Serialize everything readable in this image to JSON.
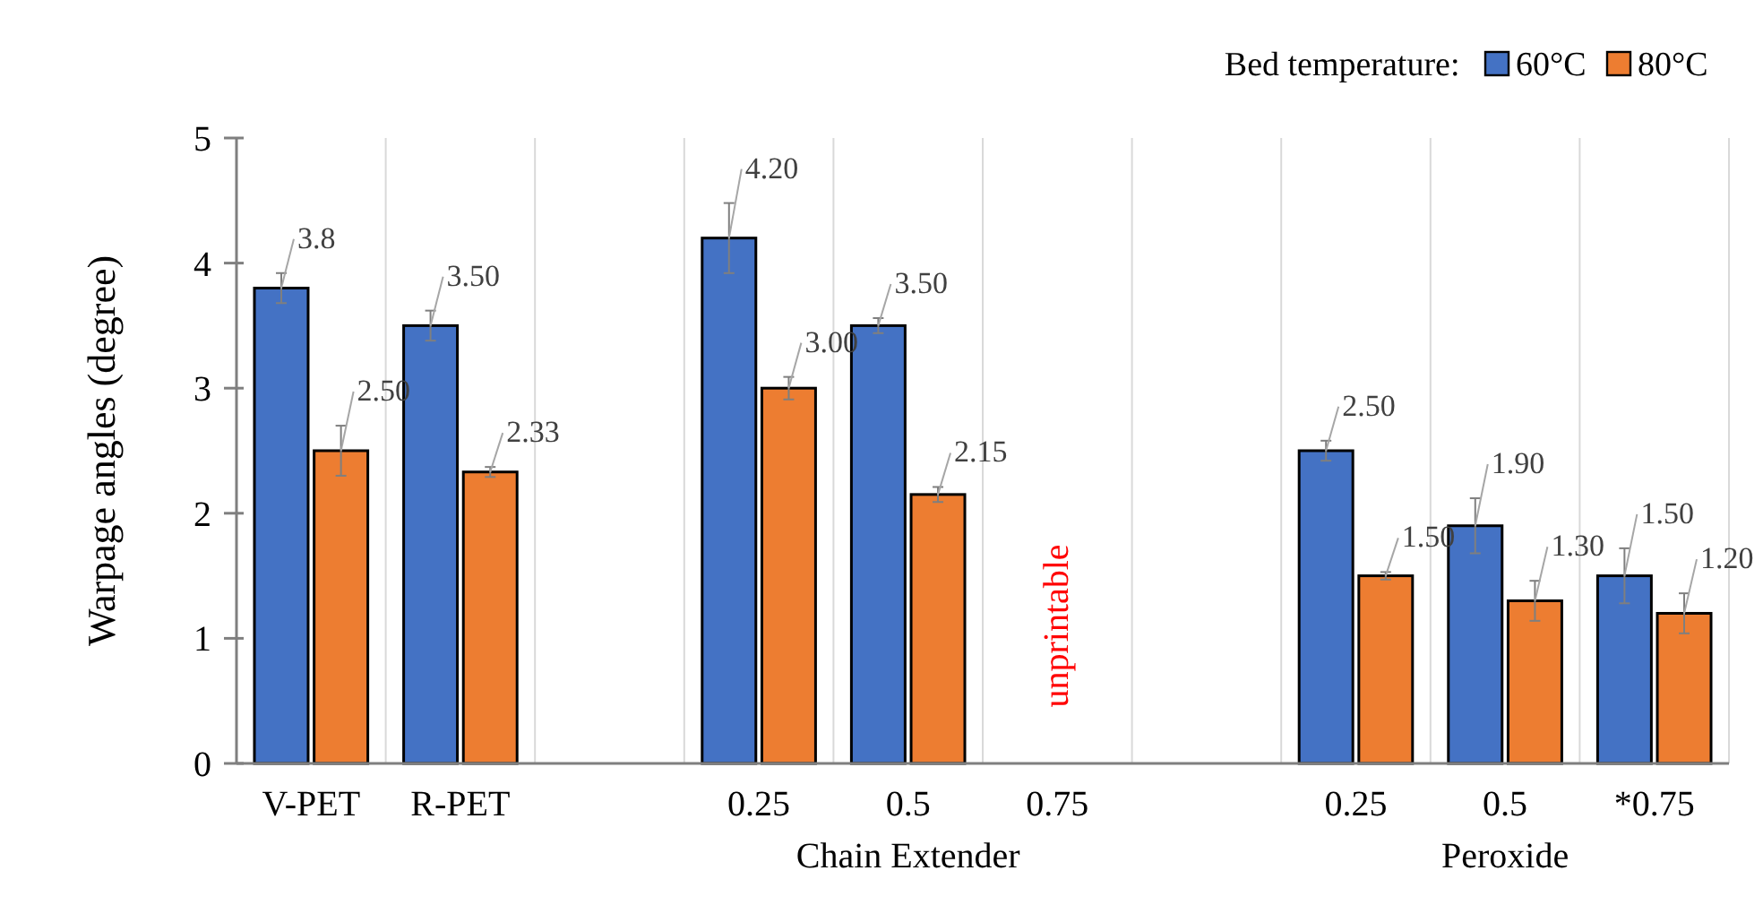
{
  "chart_data": {
    "type": "bar",
    "ylabel": "Warpage angles (degree)",
    "legend_title": "Bed temperature:",
    "categories": [
      "V-PET",
      "R-PET",
      null,
      "0.25",
      "0.5",
      "0.75",
      null,
      "0.25",
      "0.5",
      "*0.75"
    ],
    "series": [
      {
        "name": "60°C",
        "color": "#4472c4",
        "values": [
          3.8,
          3.5,
          null,
          4.2,
          3.5,
          null,
          null,
          2.5,
          1.9,
          1.5
        ],
        "errors": [
          0.12,
          0.12,
          null,
          0.28,
          0.06,
          null,
          null,
          0.08,
          0.22,
          0.22
        ],
        "value_labels": [
          "3.8",
          "3.50",
          null,
          "4.20",
          "3.50",
          null,
          null,
          "2.50",
          "1.90",
          "1.50"
        ]
      },
      {
        "name": "80°C",
        "color": "#ed7d31",
        "values": [
          2.5,
          2.33,
          null,
          3.0,
          2.15,
          null,
          null,
          1.5,
          1.3,
          1.2
        ],
        "errors": [
          0.2,
          0.04,
          null,
          0.09,
          0.06,
          null,
          null,
          0.03,
          0.16,
          0.16
        ],
        "value_labels": [
          "2.50",
          "2.33",
          null,
          "3.00",
          "2.15",
          null,
          null,
          "1.50",
          "1.30",
          "1.20"
        ]
      }
    ],
    "ylim": [
      0,
      5
    ],
    "yticks": [
      0,
      1,
      2,
      3,
      4,
      5
    ],
    "grid": "x",
    "legend": "top right",
    "annotations": [
      "Chain Extender",
      "Peroxide",
      "unprintable"
    ]
  }
}
